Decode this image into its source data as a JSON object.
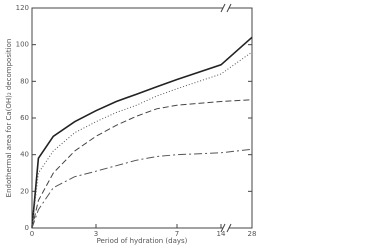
{
  "chart_data": {
    "type": "line",
    "x_label": "Period of hydration (days)",
    "y_label": "Endothermal area for Ca(OH)₂ decomposition",
    "xlim": [
      0,
      28
    ],
    "xticks": [
      0,
      3,
      7,
      14,
      28
    ],
    "ylim": [
      0,
      120
    ],
    "yticks": [
      0,
      20,
      40,
      60,
      80,
      100,
      120
    ],
    "x": [
      0,
      0.3,
      1,
      2,
      3,
      4,
      5,
      6,
      7,
      14,
      28
    ],
    "series": [
      {
        "color": "#222222",
        "dash": "solid",
        "values": [
          0,
          38,
          50,
          58,
          64,
          69,
          73,
          77,
          81,
          89,
          104
        ]
      },
      {
        "color": "#555555",
        "dash": "dotted",
        "values": [
          0,
          30,
          42,
          52,
          58,
          63,
          67,
          72,
          76,
          84,
          96
        ]
      },
      {
        "color": "#444444",
        "dash": "dashed",
        "values": [
          0,
          15,
          30,
          42,
          50,
          56,
          61,
          65,
          67,
          69,
          70
        ]
      },
      {
        "color": "#555555",
        "dash": "dashdot",
        "values": [
          0,
          10,
          22,
          28,
          31,
          34,
          37,
          39,
          40,
          41,
          43
        ]
      }
    ]
  }
}
